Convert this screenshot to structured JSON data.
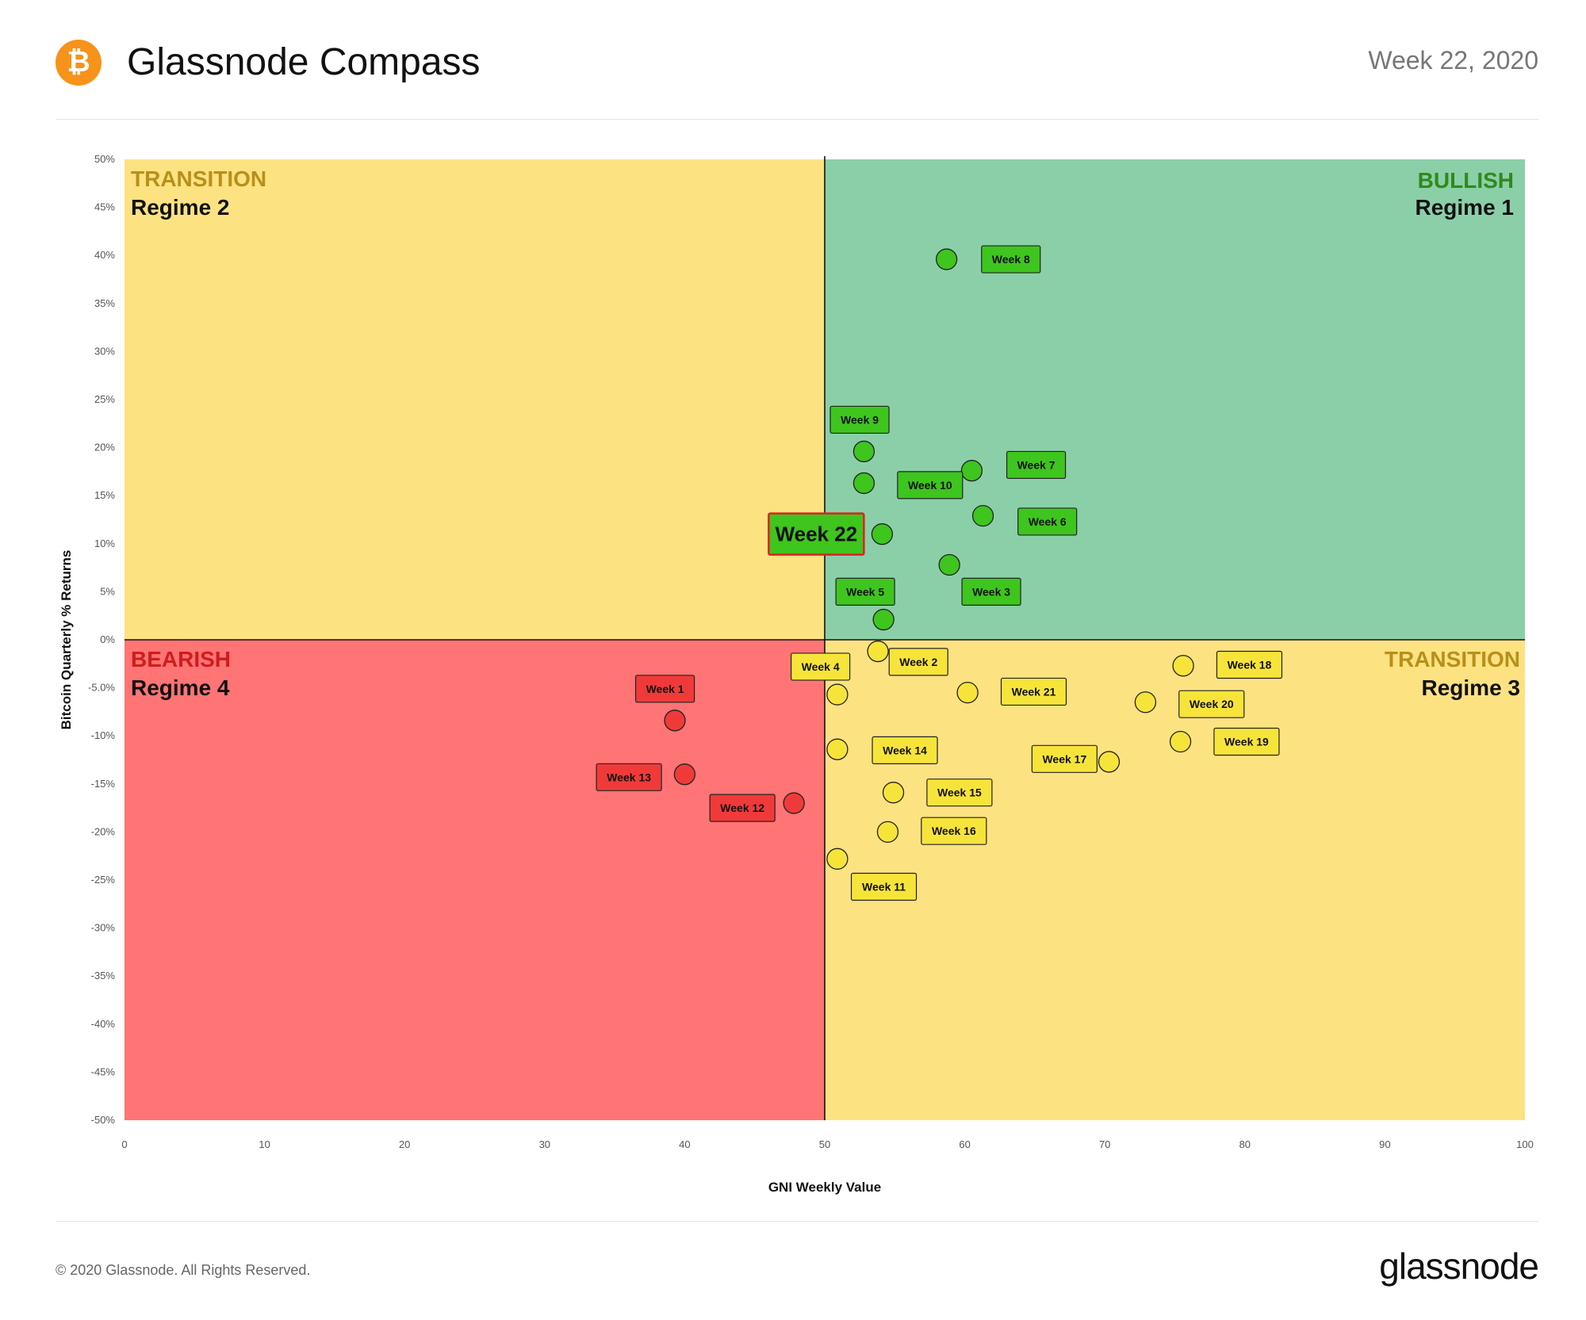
{
  "header": {
    "logo_glyph": "₿",
    "title": "Glassnode Compass",
    "week": "Week 22, 2020"
  },
  "footer": {
    "copyright": "© 2020 Glassnode. All Rights Reserved.",
    "brand": "glassnode"
  },
  "colors": {
    "bullish_bg": "#8bcfa9",
    "transition_bg": "#fde282",
    "bearish_bg": "#ff7474",
    "green_point": "#3ec51e",
    "yellow_point": "#f7e43a",
    "red_point": "#f03a3a",
    "bullish_text": "#2f8a1c",
    "transition_text": "#b7901a",
    "bearish_text": "#d01c1c",
    "highlight_border": "#e02020"
  },
  "chart_data": {
    "type": "scatter",
    "xlabel": "GNI  Weekly Value",
    "ylabel": "Bitcoin Quarterly % Returns",
    "xlim": [
      0,
      100
    ],
    "ylim": [
      -50,
      50
    ],
    "x_ticks": [
      0,
      10,
      20,
      30,
      40,
      50,
      60,
      70,
      80,
      90,
      100
    ],
    "y_ticks": [
      "50%",
      "45%",
      "40%",
      "35%",
      "30%",
      "25%",
      "20%",
      "15%",
      "10%",
      "5%",
      "0%",
      "-5.0%",
      "-10%",
      "-15%",
      "-20%",
      "-25%",
      "-30%",
      "-35%",
      "-40%",
      "-45%",
      "-50%"
    ],
    "quadrants": [
      {
        "id": "q2",
        "name": "TRANSITION",
        "regime": "Regime 2"
      },
      {
        "id": "q1",
        "name": "BULLISH",
        "regime": "Regime 1"
      },
      {
        "id": "q4",
        "name": "BEARISH",
        "regime": "Regime 4"
      },
      {
        "id": "q3",
        "name": "TRANSITION",
        "regime": "Regime 3"
      }
    ],
    "points": [
      {
        "label": "Week 8",
        "x": 58.7,
        "y": 39.6,
        "color": "green",
        "lx": 61.2,
        "ly": 39.6
      },
      {
        "label": "Week 9",
        "x": 52.8,
        "y": 19.6,
        "color": "green",
        "lx": 50.4,
        "ly": 22.9
      },
      {
        "label": "Week 7",
        "x": 60.5,
        "y": 17.6,
        "color": "green",
        "lx": 63.0,
        "ly": 18.2
      },
      {
        "label": "Week 10",
        "x": 52.8,
        "y": 16.3,
        "color": "green",
        "lx": 55.2,
        "ly": 16.1
      },
      {
        "label": "Week 6",
        "x": 61.3,
        "y": 12.9,
        "color": "green",
        "lx": 63.8,
        "ly": 12.3
      },
      {
        "label": "Week 22",
        "x": 54.1,
        "y": 11.0,
        "color": "green",
        "lx": 46.0,
        "ly": 11.0,
        "highlight": true
      },
      {
        "label": "Week 3",
        "x": 58.9,
        "y": 7.8,
        "color": "green",
        "lx": 59.8,
        "ly": 5.0
      },
      {
        "label": "Week 5",
        "x": 54.2,
        "y": 2.1,
        "color": "green",
        "lx": 50.8,
        "ly": 5.0
      },
      {
        "label": "Week 2",
        "x": 53.8,
        "y": -1.2,
        "color": "yellow",
        "lx": 54.6,
        "ly": -2.3
      },
      {
        "label": "Week 4",
        "x": 50.9,
        "y": -5.7,
        "color": "yellow",
        "lx": 47.6,
        "ly": -2.8
      },
      {
        "label": "Week 21",
        "x": 60.2,
        "y": -5.5,
        "color": "yellow",
        "lx": 62.6,
        "ly": -5.4
      },
      {
        "label": "Week 18",
        "x": 75.6,
        "y": -2.7,
        "color": "yellow",
        "lx": 78.0,
        "ly": -2.6
      },
      {
        "label": "Week 20",
        "x": 72.9,
        "y": -6.5,
        "color": "yellow",
        "lx": 75.3,
        "ly": -6.7
      },
      {
        "label": "Week 19",
        "x": 75.4,
        "y": -10.6,
        "color": "yellow",
        "lx": 77.8,
        "ly": -10.6
      },
      {
        "label": "Week 17",
        "x": 70.3,
        "y": -12.7,
        "color": "yellow",
        "lx": 64.8,
        "ly": -12.4
      },
      {
        "label": "Week 14",
        "x": 50.9,
        "y": -11.4,
        "color": "yellow",
        "lx": 53.4,
        "ly": -11.5
      },
      {
        "label": "Week 15",
        "x": 54.9,
        "y": -15.9,
        "color": "yellow",
        "lx": 57.3,
        "ly": -15.9
      },
      {
        "label": "Week 16",
        "x": 54.5,
        "y": -20.0,
        "color": "yellow",
        "lx": 56.9,
        "ly": -19.9
      },
      {
        "label": "Week 11",
        "x": 50.9,
        "y": -22.8,
        "color": "yellow",
        "lx": 51.9,
        "ly": -25.7
      },
      {
        "label": "Week 1",
        "x": 39.3,
        "y": -8.4,
        "color": "red",
        "lx": 36.5,
        "ly": -5.1
      },
      {
        "label": "Week 13",
        "x": 40.0,
        "y": -14.0,
        "color": "red",
        "lx": 33.7,
        "ly": -14.3
      },
      {
        "label": "Week 12",
        "x": 47.8,
        "y": -17.0,
        "color": "red",
        "lx": 41.8,
        "ly": -17.5
      }
    ]
  }
}
